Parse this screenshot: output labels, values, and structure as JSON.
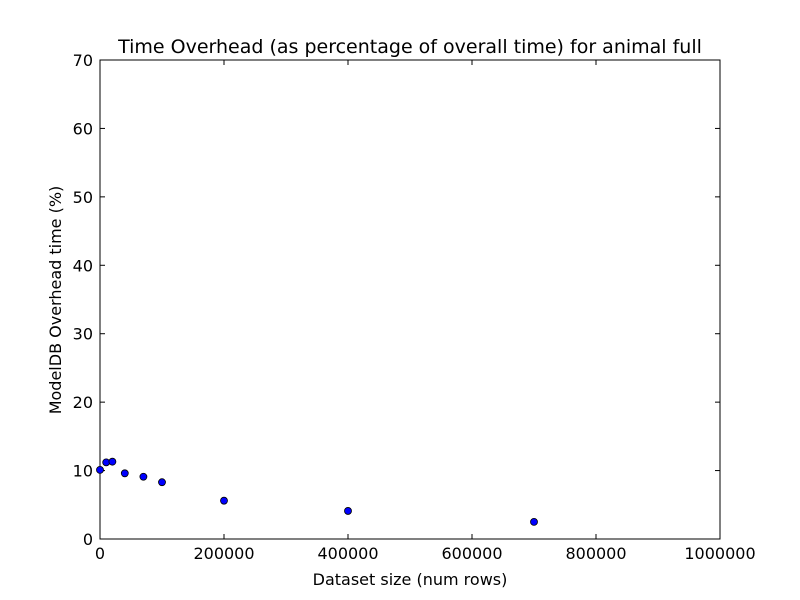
{
  "chart_data": {
    "type": "scatter",
    "title": "Time Overhead (as percentage of overall time) for animal full",
    "xlabel": "Dataset size (num rows)",
    "ylabel": "ModelDB Overhead time (%)",
    "xlim": [
      0,
      1000000
    ],
    "ylim": [
      0,
      70
    ],
    "xticks": [
      0,
      200000,
      400000,
      600000,
      800000,
      1000000
    ],
    "yticks": [
      0,
      10,
      20,
      30,
      40,
      50,
      60,
      70
    ],
    "grid": false,
    "marker_color": "#0000ff",
    "points": [
      {
        "x": 0,
        "y": 10.1
      },
      {
        "x": 10000,
        "y": 11.2
      },
      {
        "x": 20000,
        "y": 11.3
      },
      {
        "x": 40000,
        "y": 9.6
      },
      {
        "x": 70000,
        "y": 9.1
      },
      {
        "x": 100000,
        "y": 8.3
      },
      {
        "x": 200000,
        "y": 5.6
      },
      {
        "x": 400000,
        "y": 4.1
      },
      {
        "x": 700000,
        "y": 2.5
      }
    ]
  }
}
